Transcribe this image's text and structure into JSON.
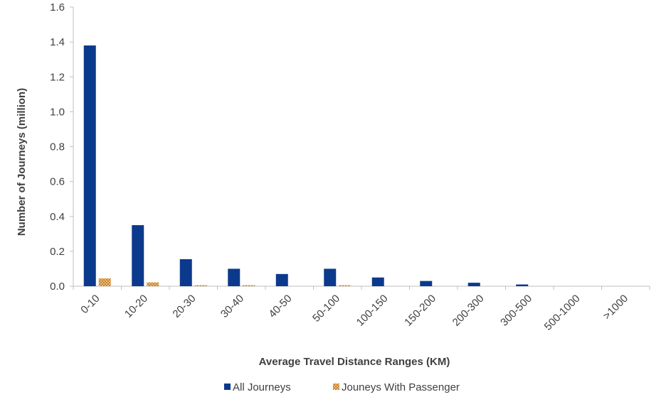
{
  "chart_data": {
    "type": "bar",
    "categories": [
      "0-10",
      "10-20",
      "20-30",
      "30-40",
      "40-50",
      "50-100",
      "100-150",
      "150-200",
      "200-300",
      "300-500",
      "500-1000",
      ">1000"
    ],
    "series": [
      {
        "name": "All Journeys",
        "color": "#0b3a8c",
        "pattern": "solid",
        "values": [
          1.38,
          0.35,
          0.155,
          0.1,
          0.07,
          0.1,
          0.05,
          0.03,
          0.02,
          0.01,
          0.0,
          0.0
        ]
      },
      {
        "name": "Jouneys With Passenger",
        "color": "#c87a1e",
        "pattern": "crosshatch",
        "values": [
          0.045,
          0.022,
          0.006,
          0.006,
          0.0,
          0.006,
          0.0,
          0.0,
          0.0,
          0.0,
          0.0,
          0.0
        ]
      }
    ],
    "xlabel": "Average Travel Distance Ranges (KM)",
    "ylabel": "Number of Journeys (million)",
    "ylim": [
      0,
      1.6
    ],
    "yticks": [
      "0.0",
      "0.2",
      "0.4",
      "0.6",
      "0.8",
      "1.0",
      "1.2",
      "1.4",
      "1.6"
    ],
    "grid": false,
    "legend": "bottom-center"
  }
}
